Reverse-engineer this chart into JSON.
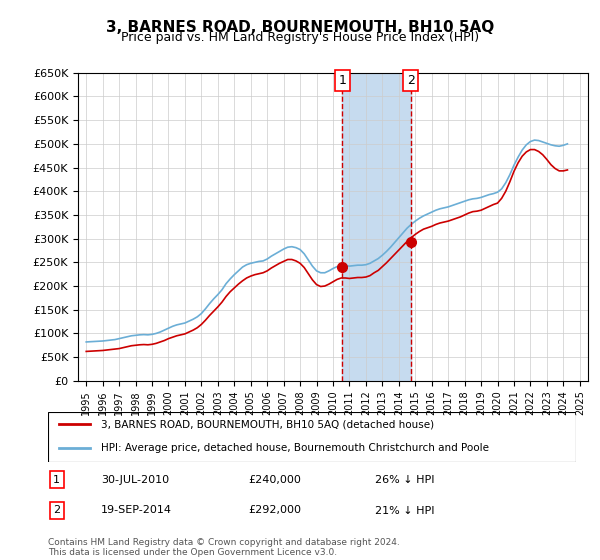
{
  "title": "3, BARNES ROAD, BOURNEMOUTH, BH10 5AQ",
  "subtitle": "Price paid vs. HM Land Registry's House Price Index (HPI)",
  "hpi_label": "HPI: Average price, detached house, Bournemouth Christchurch and Poole",
  "property_label": "3, BARNES ROAD, BOURNEMOUTH, BH10 5AQ (detached house)",
  "sale1_date": "30-JUL-2010",
  "sale1_price": 240000,
  "sale1_hpi_pct": "26%",
  "sale2_date": "19-SEP-2014",
  "sale2_price": 292000,
  "sale2_hpi_pct": "21%",
  "sale1_x": 2010.57,
  "sale2_x": 2014.72,
  "ylim_min": 0,
  "ylim_max": 650000,
  "xlim_min": 1994.5,
  "xlim_max": 2025.5,
  "hpi_color": "#6baed6",
  "property_color": "#cc0000",
  "shade_color": "#c6dbef",
  "grid_color": "#cccccc",
  "bg_color": "#ffffff",
  "yticks": [
    0,
    50000,
    100000,
    150000,
    200000,
    250000,
    300000,
    350000,
    400000,
    450000,
    500000,
    550000,
    600000,
    650000
  ],
  "copyright_text": "Contains HM Land Registry data © Crown copyright and database right 2024.\nThis data is licensed under the Open Government Licence v3.0.",
  "hpi_data_x": [
    1995,
    1995.25,
    1995.5,
    1995.75,
    1996,
    1996.25,
    1996.5,
    1996.75,
    1997,
    1997.25,
    1997.5,
    1997.75,
    1998,
    1998.25,
    1998.5,
    1998.75,
    1999,
    1999.25,
    1999.5,
    1999.75,
    2000,
    2000.25,
    2000.5,
    2000.75,
    2001,
    2001.25,
    2001.5,
    2001.75,
    2002,
    2002.25,
    2002.5,
    2002.75,
    2003,
    2003.25,
    2003.5,
    2003.75,
    2004,
    2004.25,
    2004.5,
    2004.75,
    2005,
    2005.25,
    2005.5,
    2005.75,
    2006,
    2006.25,
    2006.5,
    2006.75,
    2007,
    2007.25,
    2007.5,
    2007.75,
    2008,
    2008.25,
    2008.5,
    2008.75,
    2009,
    2009.25,
    2009.5,
    2009.75,
    2010,
    2010.25,
    2010.5,
    2010.75,
    2011,
    2011.25,
    2011.5,
    2011.75,
    2012,
    2012.25,
    2012.5,
    2012.75,
    2013,
    2013.25,
    2013.5,
    2013.75,
    2014,
    2014.25,
    2014.5,
    2014.75,
    2015,
    2015.25,
    2015.5,
    2015.75,
    2016,
    2016.25,
    2016.5,
    2016.75,
    2017,
    2017.25,
    2017.5,
    2017.75,
    2018,
    2018.25,
    2018.5,
    2018.75,
    2019,
    2019.25,
    2019.5,
    2019.75,
    2020,
    2020.25,
    2020.5,
    2020.75,
    2021,
    2021.25,
    2021.5,
    2021.75,
    2022,
    2022.25,
    2022.5,
    2022.75,
    2023,
    2023.25,
    2023.5,
    2023.75,
    2024,
    2024.25
  ],
  "hpi_data_y": [
    82000,
    82500,
    83000,
    83500,
    84000,
    85000,
    86000,
    87000,
    89000,
    91000,
    93000,
    95000,
    96000,
    97000,
    97500,
    97000,
    98000,
    100000,
    103000,
    107000,
    111000,
    115000,
    118000,
    120000,
    122000,
    126000,
    130000,
    135000,
    142000,
    152000,
    163000,
    173000,
    182000,
    192000,
    205000,
    215000,
    224000,
    232000,
    240000,
    245000,
    248000,
    250000,
    252000,
    253000,
    257000,
    263000,
    268000,
    273000,
    278000,
    282000,
    283000,
    281000,
    277000,
    268000,
    255000,
    242000,
    232000,
    228000,
    228000,
    232000,
    237000,
    241000,
    243000,
    243000,
    242000,
    243000,
    244000,
    244000,
    245000,
    248000,
    253000,
    258000,
    265000,
    273000,
    282000,
    292000,
    302000,
    312000,
    322000,
    330000,
    337000,
    343000,
    348000,
    352000,
    356000,
    360000,
    363000,
    365000,
    367000,
    370000,
    373000,
    376000,
    379000,
    382000,
    384000,
    385000,
    387000,
    390000,
    393000,
    395000,
    398000,
    405000,
    418000,
    435000,
    455000,
    472000,
    487000,
    498000,
    505000,
    508000,
    507000,
    504000,
    501000,
    498000,
    496000,
    495000,
    497000,
    500000
  ],
  "prop_data_x": [
    1995,
    1995.25,
    1995.5,
    1995.75,
    1996,
    1996.25,
    1996.5,
    1996.75,
    1997,
    1997.25,
    1997.5,
    1997.75,
    1998,
    1998.25,
    1998.5,
    1998.75,
    1999,
    1999.25,
    1999.5,
    1999.75,
    2000,
    2000.25,
    2000.5,
    2000.75,
    2001,
    2001.25,
    2001.5,
    2001.75,
    2002,
    2002.25,
    2002.5,
    2002.75,
    2003,
    2003.25,
    2003.5,
    2003.75,
    2004,
    2004.25,
    2004.5,
    2004.75,
    2005,
    2005.25,
    2005.5,
    2005.75,
    2006,
    2006.25,
    2006.5,
    2006.75,
    2007,
    2007.25,
    2007.5,
    2007.75,
    2008,
    2008.25,
    2008.5,
    2008.75,
    2009,
    2009.25,
    2009.5,
    2009.75,
    2010,
    2010.25,
    2010.5,
    2010.75,
    2011,
    2011.25,
    2011.5,
    2011.75,
    2012,
    2012.25,
    2012.5,
    2012.75,
    2013,
    2013.25,
    2013.5,
    2013.75,
    2014,
    2014.25,
    2014.5,
    2014.75,
    2015,
    2015.25,
    2015.5,
    2015.75,
    2016,
    2016.25,
    2016.5,
    2016.75,
    2017,
    2017.25,
    2017.5,
    2017.75,
    2018,
    2018.25,
    2018.5,
    2018.75,
    2019,
    2019.25,
    2019.5,
    2019.75,
    2020,
    2020.25,
    2020.5,
    2020.75,
    2021,
    2021.25,
    2021.5,
    2021.75,
    2022,
    2022.25,
    2022.5,
    2022.75,
    2023,
    2023.25,
    2023.5,
    2023.75,
    2024,
    2024.25
  ],
  "prop_data_y": [
    62000,
    62500,
    63000,
    63500,
    64000,
    65000,
    66000,
    67000,
    68000,
    70000,
    72000,
    74000,
    75000,
    76000,
    76500,
    76000,
    77000,
    79000,
    82000,
    85000,
    89000,
    92000,
    95000,
    97000,
    99000,
    103000,
    107000,
    112000,
    119000,
    128000,
    138000,
    147000,
    156000,
    166000,
    178000,
    188000,
    196000,
    204000,
    211000,
    217000,
    221000,
    224000,
    226000,
    228000,
    232000,
    238000,
    243000,
    248000,
    252000,
    256000,
    256000,
    253000,
    248000,
    239000,
    226000,
    213000,
    203000,
    199000,
    200000,
    204000,
    209000,
    214000,
    217000,
    217000,
    216000,
    217000,
    218000,
    218000,
    219000,
    222000,
    228000,
    233000,
    241000,
    249000,
    258000,
    267000,
    276000,
    285000,
    294000,
    302000,
    309000,
    315000,
    320000,
    323000,
    326000,
    330000,
    333000,
    335000,
    337000,
    340000,
    343000,
    346000,
    350000,
    354000,
    357000,
    358000,
    360000,
    364000,
    368000,
    372000,
    375000,
    385000,
    400000,
    420000,
    442000,
    460000,
    474000,
    483000,
    488000,
    488000,
    484000,
    477000,
    467000,
    456000,
    448000,
    443000,
    443000,
    445000
  ]
}
